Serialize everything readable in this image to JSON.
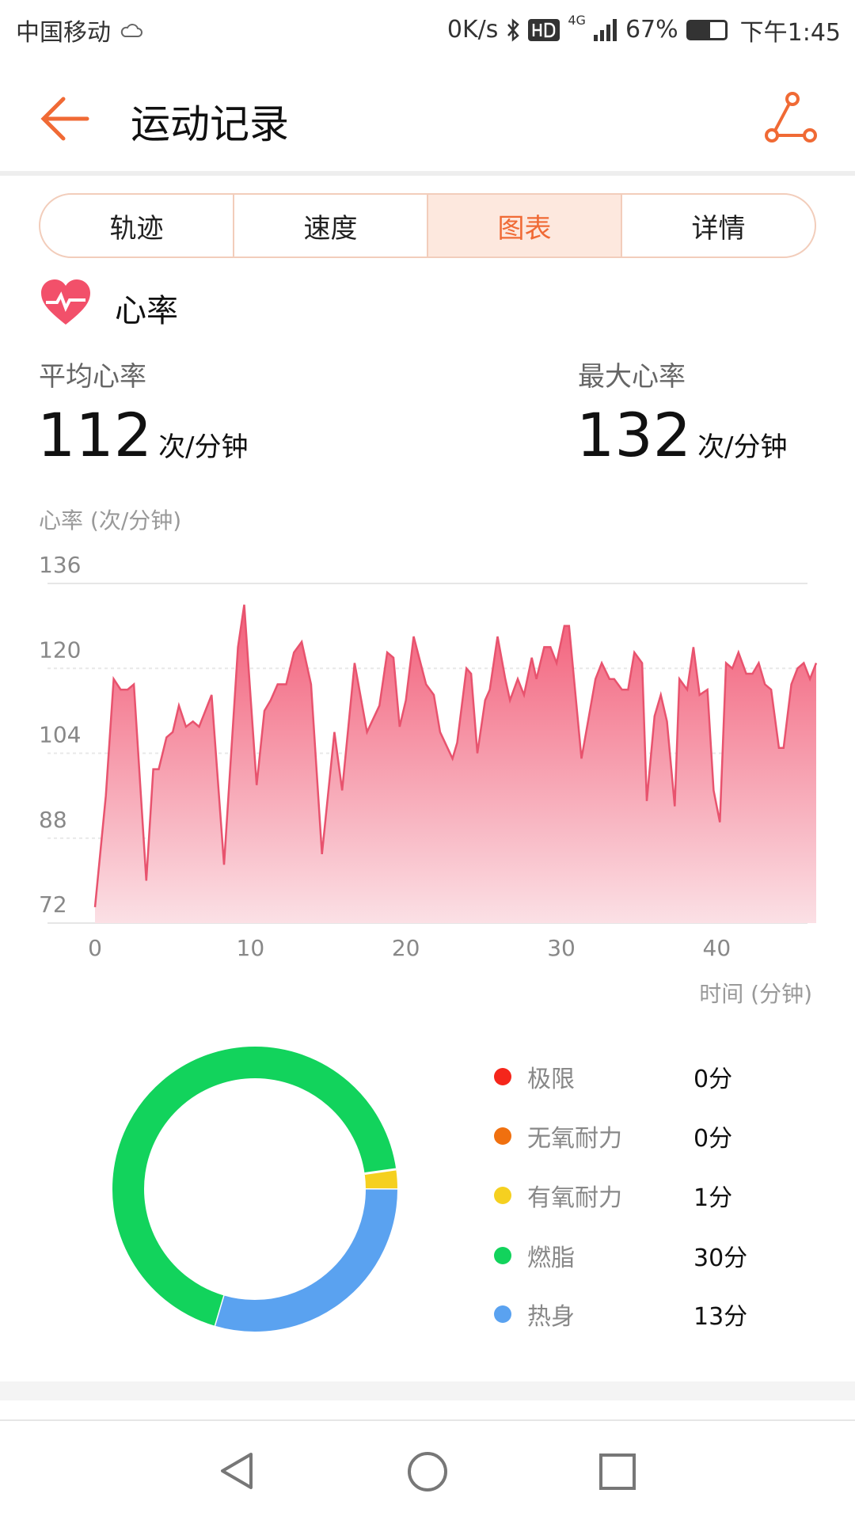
{
  "status_bar": {
    "carrier": "中国移动",
    "speed": "0K/s",
    "network": "4G",
    "battery": "67%",
    "time": "下午1:45"
  },
  "header": {
    "title": "运动记录"
  },
  "tabs": [
    {
      "label": "轨迹"
    },
    {
      "label": "速度"
    },
    {
      "label": "图表",
      "active": true
    },
    {
      "label": "详情"
    }
  ],
  "section": {
    "title": "心率"
  },
  "stats": {
    "avg_label": "平均心率",
    "avg_value": "112",
    "max_label": "最大心率",
    "max_value": "132",
    "unit": "次/分钟"
  },
  "colors": {
    "accent": "#f06a35",
    "chart_line": "#e8536e",
    "extreme": "#f5261b",
    "anaerobic": "#f0700f",
    "aerobic": "#f5d020",
    "fat_burn": "#12d35c",
    "warmup": "#5aa2f0"
  },
  "chart_data": [
    {
      "type": "area",
      "ylabel": "心率 (次/分钟)",
      "xlabel": "时间 (分钟)",
      "ylim": [
        72,
        136
      ],
      "yticks": [
        "136",
        "120",
        "104",
        "88",
        "72"
      ],
      "xticks": [
        "0",
        "10",
        "20",
        "30",
        "40"
      ],
      "xlim": [
        0,
        46.4
      ],
      "grid": true,
      "x": [
        0,
        0.7,
        1.2,
        1.65,
        2.1,
        2.5,
        3.3,
        3.75,
        4.1,
        4.6,
        5.0,
        5.4,
        5.85,
        6.3,
        6.7,
        7.5,
        8.3,
        9.2,
        9.6,
        10.4,
        10.9,
        11.3,
        11.75,
        12.3,
        12.8,
        13.3,
        13.9,
        14.6,
        15.4,
        15.9,
        16.7,
        17.5,
        18.3,
        18.8,
        19.2,
        19.6,
        20.0,
        20.5,
        21.3,
        21.8,
        22.2,
        23.0,
        23.3,
        23.9,
        24.2,
        24.6,
        25.1,
        25.4,
        25.9,
        26.4,
        26.7,
        27.2,
        27.6,
        28.1,
        28.4,
        28.9,
        29.3,
        29.7,
        30.2,
        30.5,
        31.3,
        32.2,
        32.6,
        33.1,
        33.4,
        33.9,
        34.3,
        34.7,
        35.2,
        35.5,
        36.0,
        36.4,
        36.8,
        37.3,
        37.6,
        38.1,
        38.5,
        38.9,
        39.4,
        39.8,
        40.2,
        40.6,
        41.0,
        41.4,
        41.9,
        42.3,
        42.7,
        43.1,
        43.5,
        44.0,
        44.3,
        44.8,
        45.2,
        45.6,
        46.0,
        46.4
      ],
      "y": [
        75,
        96,
        118,
        116,
        116,
        117,
        80,
        101,
        101,
        107,
        108,
        113,
        109,
        110,
        109,
        115,
        83,
        124,
        132,
        98,
        112,
        114,
        117,
        117,
        123,
        125,
        117,
        85,
        108,
        97,
        121,
        108,
        113,
        123,
        122,
        109,
        114,
        126,
        117,
        115,
        108,
        103,
        106,
        120,
        119,
        104,
        114,
        116,
        126,
        118,
        114,
        118,
        115,
        122,
        118,
        124,
        124,
        121,
        128,
        128,
        103,
        118,
        121,
        118,
        118,
        116,
        116,
        123,
        121,
        95,
        111,
        115,
        110,
        94,
        118,
        116,
        124,
        115,
        116,
        97,
        91,
        121,
        120,
        123,
        119,
        119,
        121,
        117,
        116,
        105,
        105,
        117,
        120,
        121,
        118,
        121
      ]
    },
    {
      "type": "pie",
      "donut": true,
      "slices": [
        {
          "label": "极限",
          "value": 0,
          "text": "0分",
          "color": "#f5261b"
        },
        {
          "label": "无氧耐力",
          "value": 0,
          "text": "0分",
          "color": "#f0700f"
        },
        {
          "label": "有氧耐力",
          "value": 1,
          "text": "1分",
          "color": "#f5d020"
        },
        {
          "label": "燃脂",
          "value": 30,
          "text": "30分",
          "color": "#12d35c"
        },
        {
          "label": "热身",
          "value": 13,
          "text": "13分",
          "color": "#5aa2f0"
        }
      ]
    }
  ]
}
